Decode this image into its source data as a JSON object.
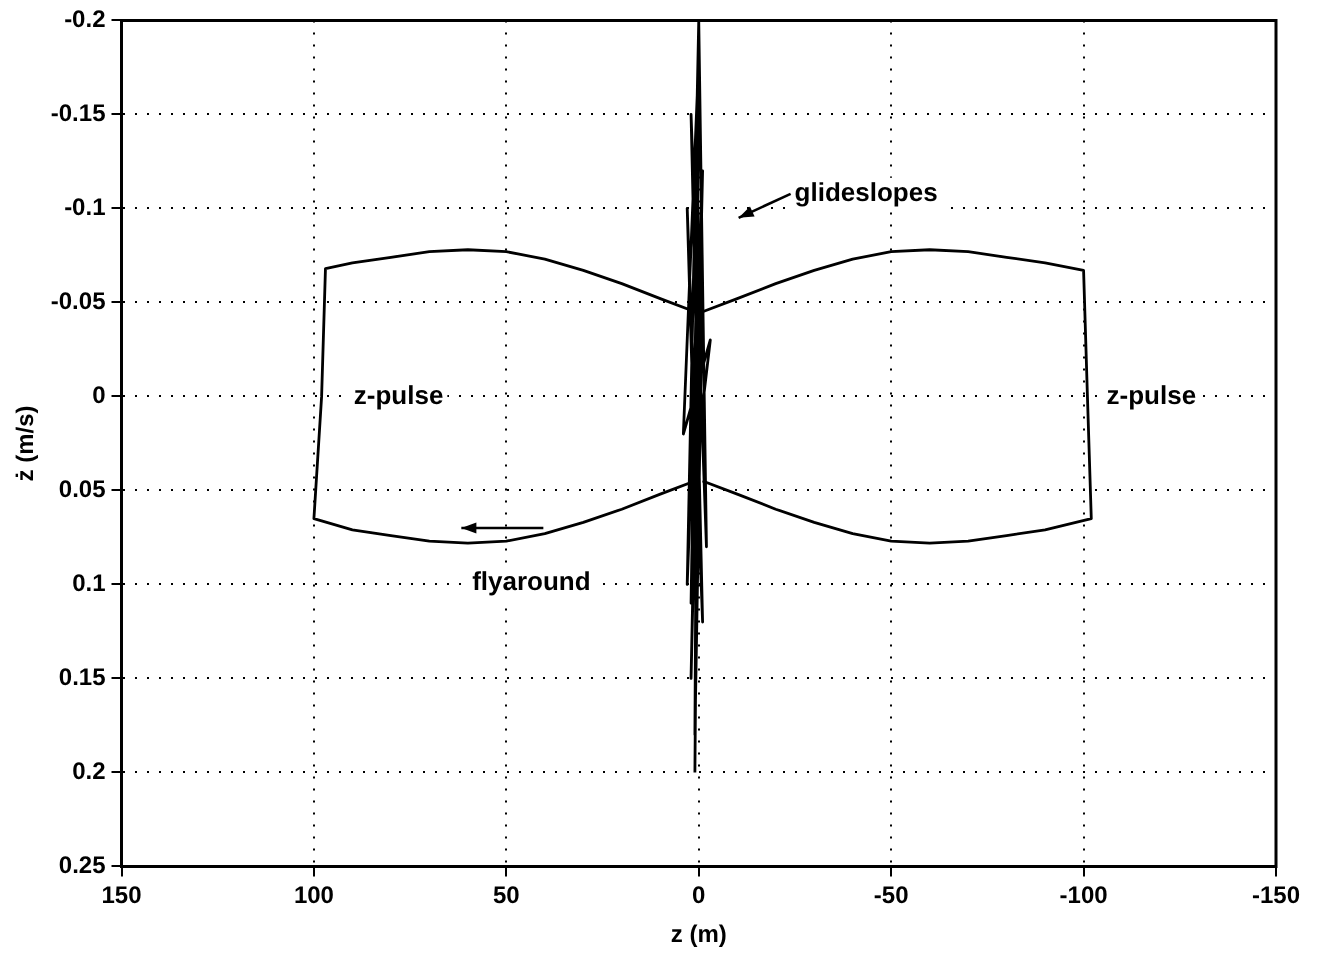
{
  "chart_data": {
    "type": "line",
    "xlabel": "z (m)",
    "ylabel": "ż (m/s)",
    "xlim": [
      150,
      -150
    ],
    "xticks": [
      150,
      100,
      50,
      0,
      -50,
      -100,
      -150
    ],
    "ylim": [
      0.25,
      -0.2
    ],
    "yticks": [
      -0.2,
      -0.15,
      -0.1,
      -0.05,
      0,
      0.05,
      0.1,
      0.15,
      0.2,
      0.25
    ],
    "grid": true,
    "legend": false,
    "marker": "none",
    "line_style": "solid",
    "series": [
      {
        "color": "#000000",
        "x": [
          1,
          10,
          20,
          30,
          40,
          50,
          60,
          70,
          80,
          90,
          97,
          98,
          100,
          90,
          80,
          70,
          60,
          50,
          40,
          30,
          20,
          10,
          1
        ],
        "values": [
          -0.045,
          -0.052,
          -0.06,
          -0.067,
          -0.073,
          -0.077,
          -0.078,
          -0.077,
          -0.074,
          -0.071,
          -0.068,
          0,
          0.065,
          0.071,
          0.074,
          0.077,
          0.078,
          0.077,
          0.073,
          0.067,
          0.06,
          0.052,
          0.045
        ]
      },
      {
        "color": "#000000",
        "x": [
          -1,
          -10,
          -20,
          -30,
          -40,
          -50,
          -60,
          -70,
          -80,
          -90,
          -100,
          -101,
          -102,
          -90,
          -80,
          -70,
          -60,
          -50,
          -40,
          -30,
          -20,
          -10,
          -1
        ],
        "values": [
          -0.045,
          -0.052,
          -0.06,
          -0.067,
          -0.073,
          -0.077,
          -0.078,
          -0.077,
          -0.074,
          -0.071,
          -0.067,
          0,
          0.065,
          0.071,
          0.074,
          0.077,
          0.078,
          0.077,
          0.073,
          0.067,
          0.06,
          0.052,
          0.045
        ]
      },
      {
        "color": "#000000",
        "x": [
          1,
          0,
          2,
          -1,
          3,
          0,
          -2,
          2,
          -1,
          3,
          1,
          -3,
          4,
          0,
          1,
          -1,
          2,
          0
        ],
        "values": [
          0.2,
          -0.05,
          0.15,
          -0.12,
          0.1,
          -0.2,
          0.08,
          -0.15,
          0.12,
          -0.1,
          0.04,
          -0.03,
          0.02,
          -0.18,
          0.18,
          -0.06,
          0.11,
          -0.14
        ]
      }
    ],
    "annotations": [
      "glideslopes",
      "z-pulse",
      "z-pulse",
      "flyaround"
    ]
  }
}
